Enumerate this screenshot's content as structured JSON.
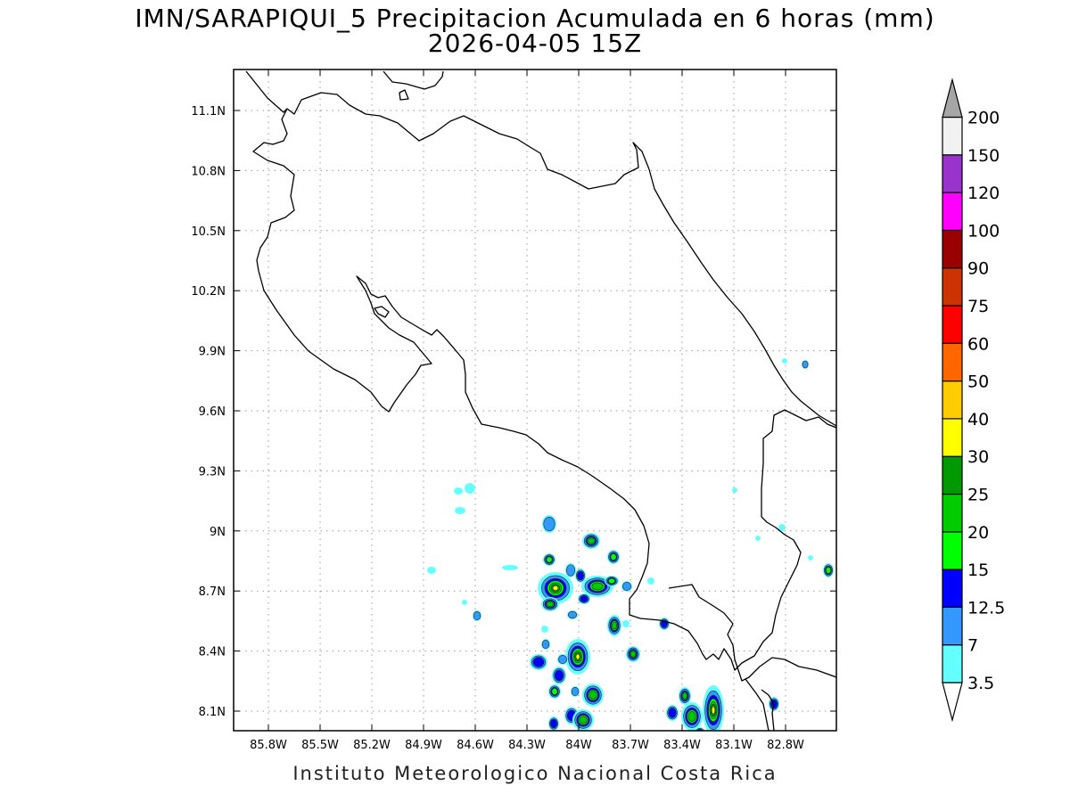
{
  "title": {
    "line1": "IMN/SARAPIQUI_5 Precipitacion Acumulada en 6 horas (mm)",
    "line2": "2026-04-05 15Z"
  },
  "footer": "Instituto Meteorologico Nacional Costa Rica",
  "map": {
    "lon_range": [
      -86.0,
      -83.0
    ],
    "lat_range": [
      8.0,
      11.3
    ],
    "lon_ticks": [
      "85.8W",
      "85.5W",
      "85.2W",
      "84.9W",
      "84.6W",
      "84.3W",
      "84W",
      "83.7W",
      "83.4W",
      "83.1W",
      "82.8W"
    ],
    "lat_ticks": [
      "11.1N",
      "10.8N",
      "10.5N",
      "10.2N",
      "9.9N",
      "9.6N",
      "9.3N",
      "9N",
      "8.7N",
      "8.4N",
      "8.1N"
    ],
    "grid": "dotted"
  },
  "colorbar": {
    "levels": [
      "3.5",
      "7",
      "12.5",
      "15",
      "20",
      "25",
      "30",
      "40",
      "50",
      "60",
      "75",
      "90",
      "100",
      "120",
      "150",
      "200"
    ],
    "colors": [
      "#66ffff",
      "#3399ff",
      "#0000ff",
      "#00ff00",
      "#00cc00",
      "#009900",
      "#ffff00",
      "#ffcc00",
      "#ff6600",
      "#ff0000",
      "#cc3300",
      "#990000",
      "#ff00ff",
      "#9933cc",
      "#f2f2f2",
      "#a6a6a6"
    ],
    "bottom_color": "#ffffff",
    "top_color": "#a6a6a6"
  },
  "icons": {
    "bottom_arrow": "triangle-down-icon",
    "top_arrow": "triangle-up-icon"
  }
}
